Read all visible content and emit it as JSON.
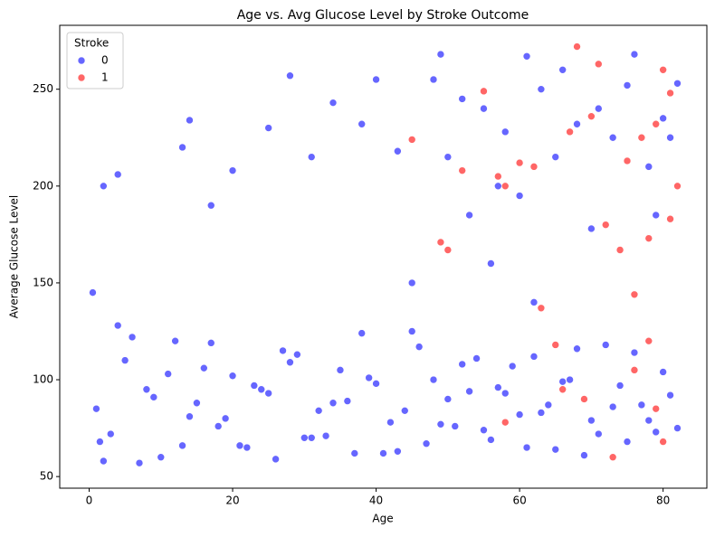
{
  "chart_data": {
    "type": "scatter",
    "title": "Age vs. Avg Glucose Level by Stroke Outcome",
    "xlabel": "Age",
    "ylabel": "Average Glucose Level",
    "legend_title": "Stroke",
    "legend_loc": "upper left",
    "alpha": 0.6,
    "xlim": [
      -4.1,
      86.1
    ],
    "ylim": [
      44,
      283
    ],
    "xticks": [
      0,
      20,
      40,
      60,
      80
    ],
    "yticks": [
      50,
      100,
      150,
      200,
      250
    ],
    "series": [
      {
        "name": "0",
        "color": "#0000ff",
        "x": [
          1,
          3,
          5,
          8,
          10,
          12,
          15,
          18,
          20,
          22,
          25,
          27,
          30,
          32,
          35,
          37,
          40,
          42,
          45,
          47,
          50,
          52,
          55,
          57,
          60,
          62,
          65,
          67,
          70,
          72,
          75,
          77,
          80,
          82,
          2,
          6,
          9,
          13,
          16,
          19,
          23,
          26,
          29,
          33,
          36,
          39,
          43,
          46,
          49,
          53,
          56,
          59,
          63,
          66,
          69,
          73,
          76,
          79,
          81,
          4,
          7,
          11,
          14,
          17,
          21,
          24,
          28,
          31,
          34,
          38,
          41,
          44,
          48,
          51,
          54,
          58,
          61,
          64,
          68,
          71,
          74,
          78,
          0.5,
          1.5,
          2,
          4,
          13,
          14,
          17,
          20,
          25,
          28,
          31,
          34,
          38,
          40,
          43,
          45,
          48,
          49,
          50,
          52,
          53,
          55,
          57,
          58,
          60,
          61,
          63,
          65,
          66,
          68,
          70,
          71,
          73,
          75,
          76,
          78,
          79,
          80,
          81,
          82,
          56,
          62
        ],
        "y": [
          85,
          72,
          110,
          95,
          60,
          120,
          88,
          76,
          102,
          65,
          93,
          115,
          70,
          84,
          105,
          62,
          98,
          78,
          125,
          67,
          90,
          108,
          74,
          96,
          82,
          112,
          64,
          100,
          79,
          118,
          68,
          87,
          104,
          75,
          58,
          122,
          91,
          66,
          106,
          80,
          97,
          59,
          113,
          71,
          89,
          101,
          63,
          117,
          77,
          94,
          69,
          107,
          83,
          99,
          61,
          86,
          114,
          73,
          92,
          128,
          57,
          103,
          81,
          119,
          66,
          95,
          109,
          70,
          88,
          124,
          62,
          84,
          100,
          76,
          111,
          93,
          65,
          87,
          116,
          72,
          97,
          79,
          145,
          68,
          200,
          206,
          220,
          234,
          190,
          208,
          230,
          257,
          215,
          243,
          232,
          255,
          218,
          150,
          255,
          268,
          215,
          245,
          185,
          240,
          200,
          228,
          195,
          267,
          250,
          215,
          260,
          232,
          178,
          240,
          225,
          252,
          268,
          210,
          185,
          235,
          225,
          253,
          160,
          140
        ]
      },
      {
        "name": "1",
        "color": "#ff0000",
        "x": [
          45,
          49,
          50,
          52,
          55,
          57,
          58,
          60,
          62,
          63,
          65,
          67,
          68,
          69,
          70,
          71,
          72,
          74,
          75,
          76,
          77,
          78,
          78,
          79,
          80,
          80,
          81,
          82,
          66,
          73,
          58,
          76,
          81,
          79
        ],
        "y": [
          224,
          171,
          167,
          208,
          249,
          205,
          200,
          212,
          210,
          137,
          118,
          228,
          272,
          90,
          236,
          263,
          180,
          167,
          213,
          144,
          225,
          173,
          120,
          232,
          260,
          68,
          248,
          200,
          95,
          60,
          78,
          105,
          183,
          85
        ]
      }
    ]
  }
}
